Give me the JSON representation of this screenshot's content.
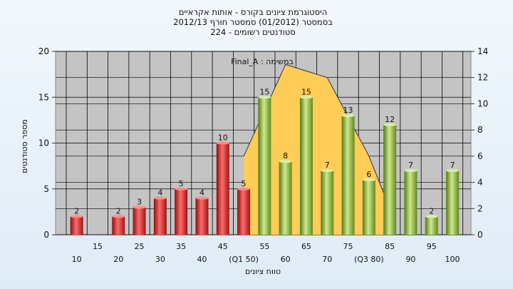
{
  "chart_data": {
    "type": "bar",
    "title_lines": [
      "היסטוגרמת ציונים בקורס - אותות אקראיים",
      "בסמסטר  (01/2012)  סמסטר חורף  2012/13",
      "סטודנטים רשומים - 224"
    ],
    "ylabel": "מספר סטודנטים",
    "xlabel": "טווח ציונים",
    "annotation": "Final_A : במשימה",
    "ylim": [
      0,
      20
    ],
    "yticks": [
      0,
      5,
      10,
      15,
      20
    ],
    "y2lim": [
      0,
      14
    ],
    "y2ticks": [
      0,
      2,
      4,
      6,
      8,
      10,
      12,
      14
    ],
    "grid": true,
    "categories": [
      "10",
      "15",
      "20",
      "25",
      "30",
      "35",
      "40",
      "45",
      "50",
      "55",
      "60",
      "65",
      "70",
      "75",
      "80",
      "85",
      "90",
      "95",
      "100"
    ],
    "category_labels": [
      "10",
      "15",
      "20",
      "25",
      "30",
      "35",
      "40",
      "45",
      "(Q1 50)",
      "55",
      "60",
      "65",
      "70",
      "75",
      "(Q3 80)",
      "85",
      "90",
      "95",
      "100"
    ],
    "values": [
      2,
      0,
      2,
      3,
      4,
      5,
      4,
      10,
      5,
      15,
      8,
      15,
      7,
      13,
      6,
      12,
      7,
      2,
      7
    ],
    "bar_labels": [
      "2",
      "",
      "2",
      "3",
      "4",
      "5",
      "4",
      "10",
      "5",
      "15",
      "8",
      "15",
      "7",
      "13",
      "6",
      "12",
      "7",
      "2",
      "7"
    ],
    "bar_groups": [
      "fail",
      "fail",
      "fail",
      "fail",
      "fail",
      "fail",
      "fail",
      "fail",
      "fail",
      "pass",
      "pass",
      "pass",
      "pass",
      "pass",
      "pass",
      "pass",
      "pass",
      "pass",
      "pass"
    ],
    "distribution_area": {
      "x": [
        50,
        60,
        70,
        80,
        85
      ],
      "y": [
        6,
        13,
        12,
        6,
        2
      ]
    },
    "colors": {
      "fail": "#e03030",
      "pass": "#8fbf3c",
      "area": "#ffcc55",
      "plot_bg": "#c4c4c4",
      "grid": "#000000"
    }
  }
}
